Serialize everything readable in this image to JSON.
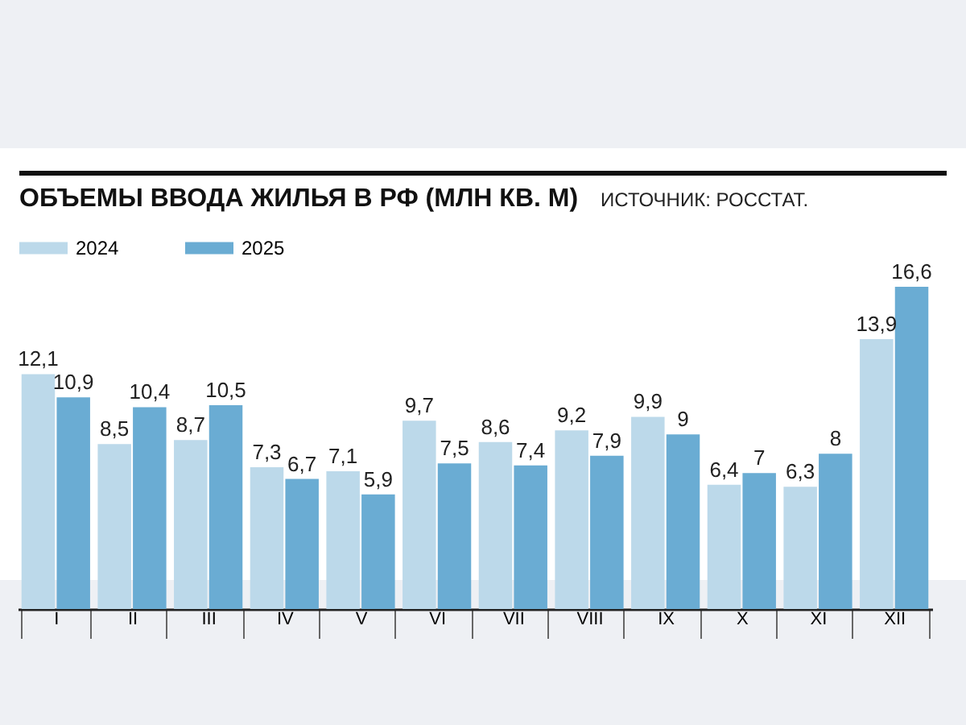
{
  "chart_data": {
    "type": "bar",
    "title": "ОБЪЕМЫ ВВОДА ЖИЛЬЯ В РФ (МЛН КВ. М)",
    "annotations": [
      "ИСТОЧНИК: РОССТАТ."
    ],
    "categories": [
      "I",
      "II",
      "III",
      "IV",
      "V",
      "VI",
      "VII",
      "VIII",
      "IX",
      "X",
      "XI",
      "XII"
    ],
    "series": [
      {
        "name": "2024",
        "color": "#bcd9ea",
        "values": [
          12.1,
          8.5,
          8.7,
          7.3,
          7.1,
          9.7,
          8.6,
          9.2,
          9.9,
          6.4,
          6.3,
          13.9
        ],
        "value_labels": [
          "12,1",
          "8,5",
          "8,7",
          "7,3",
          "7,1",
          "9,7",
          "8,6",
          "9,2",
          "9,9",
          "6,4",
          "6,3",
          "13,9"
        ]
      },
      {
        "name": "2025",
        "color": "#6aacd3",
        "values": [
          10.9,
          10.4,
          10.5,
          6.7,
          5.9,
          7.5,
          7.4,
          7.9,
          9,
          7,
          8,
          16.6
        ],
        "value_labels": [
          "10,9",
          "10,4",
          "10,5",
          "6,7",
          "5,9",
          "7,5",
          "7,4",
          "7,9",
          "9",
          "7",
          "8",
          "16,6"
        ]
      }
    ],
    "legend": "top"
  }
}
